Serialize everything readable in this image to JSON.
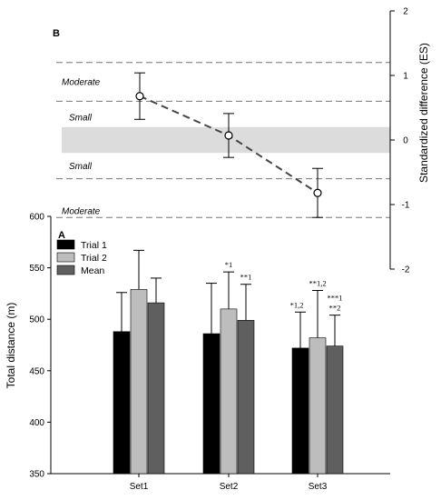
{
  "chart_data": [
    {
      "panel": "A",
      "type": "bar",
      "ylabel": "Total distance (m)",
      "ylim": [
        350,
        600
      ],
      "yticks": [
        350,
        400,
        450,
        500,
        550,
        600
      ],
      "categories": [
        "Set1",
        "Set2",
        "Set3"
      ],
      "series": [
        {
          "name": "Trial 1",
          "color": "#000000",
          "values": [
            488,
            486,
            472
          ],
          "errors": [
            38,
            49,
            35
          ]
        },
        {
          "name": "Trial 2",
          "color": "#bdbdbd",
          "values": [
            529,
            510,
            482
          ],
          "errors": [
            38,
            36,
            46
          ]
        },
        {
          "name": "Mean",
          "color": "#5f5f5f",
          "values": [
            516,
            499,
            474
          ],
          "errors": [
            24,
            35,
            30
          ]
        }
      ],
      "annotations": [
        {
          "category": "Set2",
          "series": "Trial 2",
          "text": "*1"
        },
        {
          "category": "Set2",
          "series": "Mean",
          "text": "**1"
        },
        {
          "category": "Set3",
          "series": "Trial 1",
          "text": "*1,2"
        },
        {
          "category": "Set3",
          "series": "Trial 2",
          "text": "**1,2"
        },
        {
          "category": "Set3",
          "series": "Mean",
          "text": "***1"
        },
        {
          "category": "Set3",
          "series": "Mean",
          "text": "**2"
        }
      ],
      "legend_position": "top-left"
    },
    {
      "panel": "B",
      "type": "line",
      "ylabel": "Standardized difference (ES)",
      "ylim": [
        -2,
        2
      ],
      "yticks": [
        -2,
        -1,
        0,
        1,
        2
      ],
      "x": [
        "Set1",
        "Set2",
        "Set3"
      ],
      "values": [
        0.68,
        0.07,
        -0.82
      ],
      "errors": [
        0.36,
        0.34,
        0.38
      ],
      "reference_lines": [
        1.2,
        0.6,
        -0.6,
        -1.2
      ],
      "shaded_band": [
        -0.2,
        0.2
      ],
      "band_labels": [
        {
          "text": "Moderate",
          "y": 0.9
        },
        {
          "text": "Small",
          "y": 0.35
        },
        {
          "text": "Small",
          "y": -0.4
        },
        {
          "text": "Moderate",
          "y": -1.1
        }
      ]
    }
  ]
}
